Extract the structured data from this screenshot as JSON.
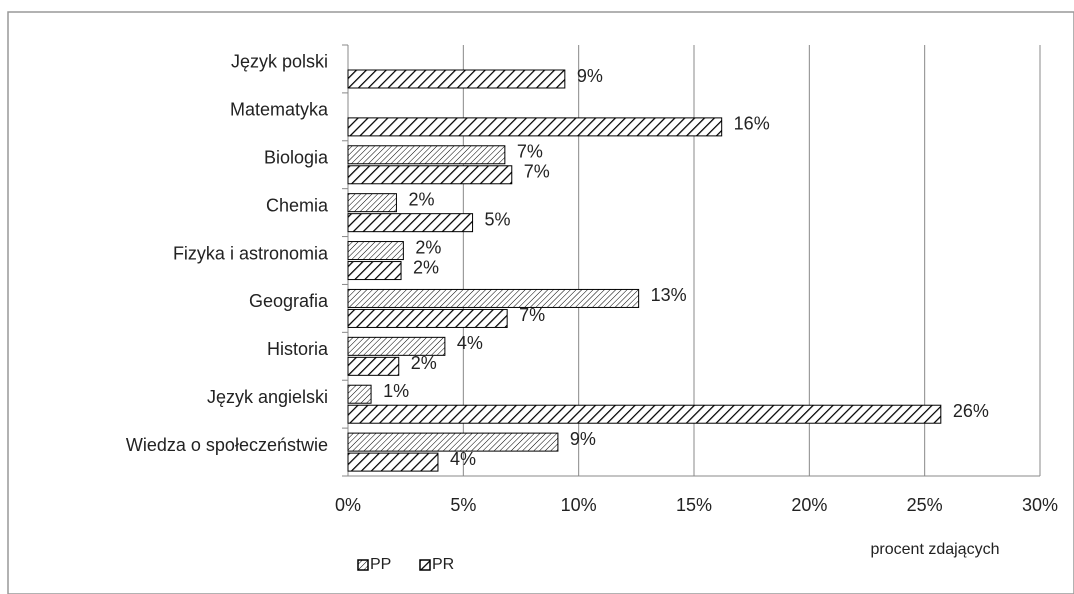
{
  "chart_data": {
    "type": "hbar",
    "categories": [
      "Język polski",
      "Matematyka",
      "Biologia",
      "Chemia",
      "Fizyka i astronomia",
      "Geografia",
      "Historia",
      "Język angielski",
      "Wiedza o społeczeństwie"
    ],
    "series": [
      {
        "name": "PP",
        "color": "#000000",
        "hatch": "dense",
        "values": [
          null,
          null,
          6.8,
          2.1,
          2.4,
          12.6,
          4.2,
          1.0,
          9.1
        ],
        "value_labels": [
          null,
          null,
          "7%",
          "2%",
          "2%",
          "13%",
          "4%",
          "1%",
          "9%"
        ]
      },
      {
        "name": "PR",
        "color": "#000000",
        "hatch": "wide",
        "values": [
          9.4,
          16.2,
          7.1,
          5.4,
          2.3,
          6.9,
          2.2,
          25.7,
          3.9
        ],
        "value_labels": [
          "9%",
          "16%",
          "7%",
          "5%",
          "2%",
          "7%",
          "2%",
          "26%",
          "4%"
        ]
      }
    ],
    "xlim": [
      0,
      30
    ],
    "xticks": [
      {
        "value": 0,
        "label": "0%"
      },
      {
        "value": 5,
        "label": "5%"
      },
      {
        "value": 10,
        "label": "10%"
      },
      {
        "value": 15,
        "label": "15%"
      },
      {
        "value": 20,
        "label": "20%"
      },
      {
        "value": 25,
        "label": "25%"
      },
      {
        "value": 30,
        "label": "30%"
      }
    ],
    "x_label": "procent zdających",
    "grid": true,
    "legend": "bottom-left"
  }
}
